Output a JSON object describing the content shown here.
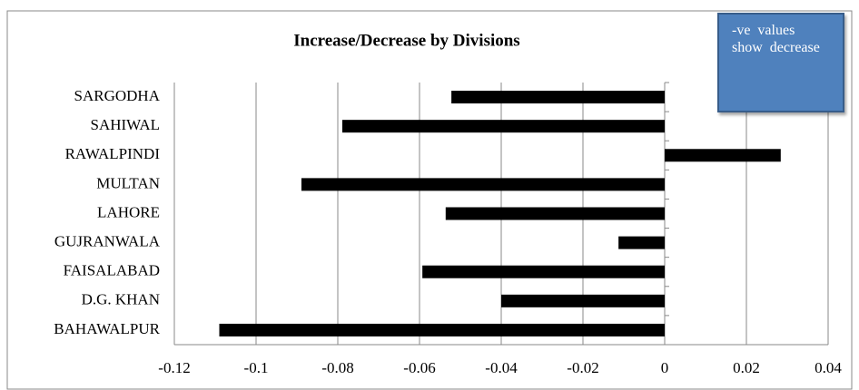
{
  "chart_data": {
    "type": "bar",
    "orientation": "horizontal",
    "title": "Increase/Decrease by Divisions",
    "categories": [
      "BAHAWALPUR",
      "D.G. KHAN",
      "FAISALABAD",
      "GUJRANWALA",
      "LAHORE",
      "MULTAN",
      "RAWALPINDI",
      "SAHIWAL",
      "SARGODHA"
    ],
    "values": [
      -0.109,
      -0.04,
      -0.0593,
      -0.0113,
      -0.0536,
      -0.0889,
      0.0284,
      -0.0789,
      -0.0522
    ],
    "color": "#000000",
    "xlim": [
      -0.12,
      0.04
    ],
    "xticks": [
      -0.12,
      -0.1,
      -0.08,
      -0.06,
      -0.04,
      -0.02,
      0,
      0.02,
      0.04
    ],
    "grid": true,
    "annotation": "-ve values show decrease"
  }
}
